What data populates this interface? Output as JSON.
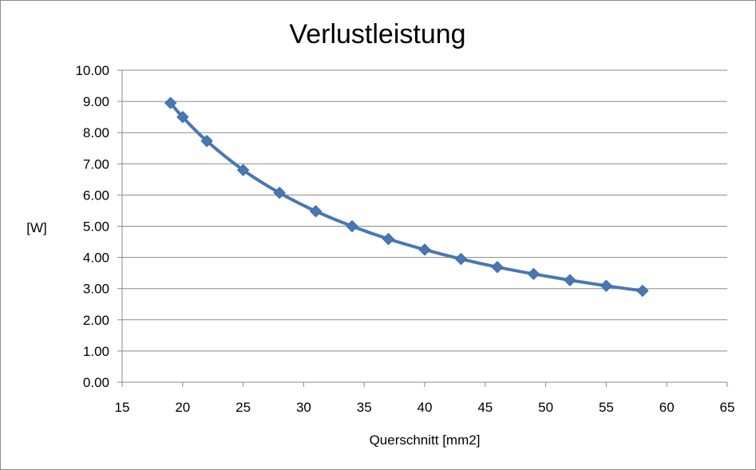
{
  "chart_data": {
    "type": "line",
    "title": "Verlustleistung",
    "xlabel": "Querschnitt [mm2]",
    "ylabel": "[W]",
    "xlim": [
      15,
      65
    ],
    "ylim": [
      0,
      10
    ],
    "x_ticks": [
      "15",
      "20",
      "25",
      "30",
      "35",
      "40",
      "45",
      "50",
      "55",
      "60",
      "65"
    ],
    "y_ticks": [
      "0.00",
      "1.00",
      "2.00",
      "3.00",
      "4.00",
      "5.00",
      "6.00",
      "7.00",
      "8.00",
      "9.00",
      "10.00"
    ],
    "grid": true,
    "marker": "diamond",
    "series": [
      {
        "color": "#4a77b4",
        "x": [
          19,
          20,
          22,
          25,
          28,
          31,
          34,
          37,
          40,
          43,
          46,
          49,
          52,
          55,
          58
        ],
        "y": [
          8.95,
          8.5,
          7.73,
          6.8,
          6.07,
          5.48,
          5.0,
          4.59,
          4.25,
          3.95,
          3.69,
          3.47,
          3.27,
          3.09,
          2.93
        ]
      }
    ]
  }
}
